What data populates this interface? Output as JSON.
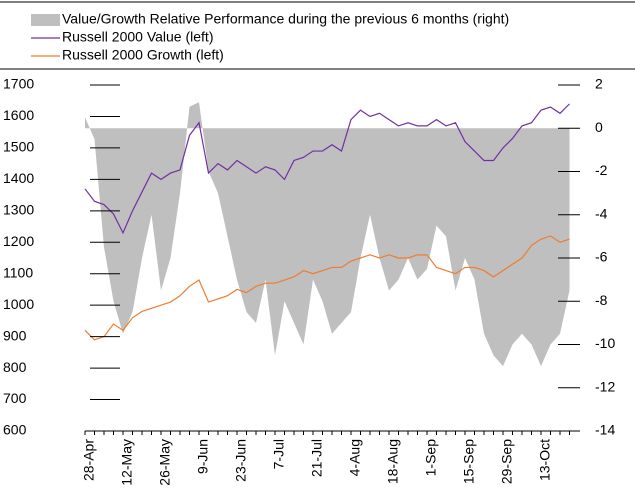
{
  "chart_data": {
    "type": "line",
    "categories": [
      "28-Apr",
      null,
      null,
      null,
      "12-May",
      null,
      null,
      null,
      "26-May",
      null,
      null,
      null,
      "9-Jun",
      null,
      null,
      null,
      "23-Jun",
      null,
      null,
      null,
      "7-Jul",
      null,
      null,
      null,
      "21-Jul",
      null,
      null,
      null,
      "4-Aug",
      null,
      null,
      null,
      "18-Aug",
      null,
      null,
      null,
      "1-Sep",
      null,
      null,
      null,
      "15-Sep",
      null,
      null,
      null,
      "29-Sep",
      null,
      null,
      null,
      "13-Oct",
      null,
      null,
      null
    ],
    "series": [
      {
        "name": "Value/Growth Relative Performance during the previous 6 months (right)",
        "type": "area",
        "axis": "y2",
        "color": "#bfbfbf",
        "values": [
          0.5,
          -0.5,
          -5.5,
          -8,
          -9.5,
          -8.5,
          -6,
          -4,
          -7.5,
          -6,
          -3,
          1,
          1.2,
          -2,
          -3,
          -5,
          -7,
          -8.5,
          -9,
          -7,
          -10.5,
          -8,
          -9,
          -10,
          -7,
          -8,
          -9.5,
          -9,
          -8.5,
          -6,
          -4,
          -6,
          -7.5,
          -7,
          -6,
          -7,
          -6.5,
          -4.5,
          -5,
          -7.5,
          -6,
          -7,
          -9.5,
          -10.5,
          -11,
          -10,
          -9.5,
          -10,
          -11,
          -10,
          -9.5,
          -7.5
        ]
      },
      {
        "name": "Russell 2000 Value (left)",
        "type": "line",
        "color": "#7030a0",
        "values": [
          1370,
          1330,
          1320,
          1290,
          1230,
          1300,
          1360,
          1420,
          1400,
          1420,
          1430,
          1540,
          1580,
          1420,
          1450,
          1430,
          1460,
          1440,
          1420,
          1440,
          1430,
          1400,
          1460,
          1470,
          1490,
          1490,
          1510,
          1490,
          1590,
          1620,
          1600,
          1610,
          1590,
          1570,
          1580,
          1570,
          1570,
          1590,
          1570,
          1580,
          1520,
          1490,
          1460,
          1460,
          1500,
          1530,
          1570,
          1580,
          1620,
          1630,
          1610,
          1640
        ]
      },
      {
        "name": "Russell 2000 Growth (left)",
        "type": "line",
        "color": "#ed7d31",
        "values": [
          920,
          890,
          900,
          940,
          920,
          960,
          980,
          990,
          1000,
          1010,
          1030,
          1060,
          1080,
          1010,
          1020,
          1030,
          1050,
          1040,
          1060,
          1070,
          1070,
          1080,
          1090,
          1110,
          1100,
          1110,
          1120,
          1120,
          1140,
          1150,
          1160,
          1150,
          1160,
          1150,
          1150,
          1160,
          1160,
          1120,
          1110,
          1100,
          1120,
          1120,
          1110,
          1090,
          1110,
          1130,
          1150,
          1190,
          1210,
          1220,
          1200,
          1210
        ]
      }
    ],
    "ylim": [
      600,
      1700
    ],
    "yticks": [
      600,
      700,
      800,
      900,
      1000,
      1100,
      1200,
      1300,
      1400,
      1500,
      1600,
      1700
    ],
    "y2lim": [
      -14,
      2
    ],
    "y2ticks": [
      -14,
      -12,
      -10,
      -8,
      -6,
      -4,
      -2,
      0,
      2
    ],
    "grid": false
  }
}
